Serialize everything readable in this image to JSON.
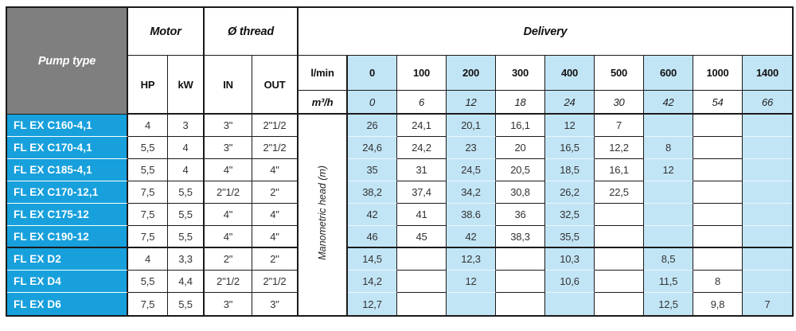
{
  "header": {
    "pump_type": "Pump type",
    "motor": "Motor",
    "thread": "Ø thread",
    "delivery": "Delivery",
    "hp": "HP",
    "kw": "kW",
    "in": "IN",
    "out": "OUT",
    "lmin_label": "l/min",
    "m3h_label": "m³/h",
    "manometric_label": "Manometric head (m)",
    "lmin_values": [
      "0",
      "100",
      "200",
      "300",
      "400",
      "500",
      "600",
      "1000",
      "1400"
    ],
    "m3h_values": [
      "0",
      "6",
      "12",
      "18",
      "24",
      "30",
      "42",
      "54",
      "66"
    ]
  },
  "rows": [
    {
      "name": "FL EX C160-4,1",
      "hp": "4",
      "kw": "3",
      "in": "3\"",
      "out": "2\"1/2",
      "delivery": [
        "26",
        "24,1",
        "20,1",
        "16,1",
        "12",
        "7",
        "",
        "",
        ""
      ],
      "group_end": false
    },
    {
      "name": "FL EX C170-4,1",
      "hp": "5,5",
      "kw": "4",
      "in": "3\"",
      "out": "2\"1/2",
      "delivery": [
        "24,6",
        "24,2",
        "23",
        "20",
        "16,5",
        "12,2",
        "8",
        "",
        ""
      ],
      "group_end": false
    },
    {
      "name": "FL EX C185-4,1",
      "hp": "5,5",
      "kw": "4",
      "in": "4\"",
      "out": "4\"",
      "delivery": [
        "35",
        "31",
        "24,5",
        "20,5",
        "18,5",
        "16,1",
        "12",
        "",
        ""
      ],
      "group_end": false
    },
    {
      "name": "FL EX C170-12,1",
      "hp": "7,5",
      "kw": "5,5",
      "in": "2\"1/2",
      "out": "2\"",
      "delivery": [
        "38,2",
        "37,4",
        "34,2",
        "30,8",
        "26,2",
        "22,5",
        "",
        "",
        ""
      ],
      "group_end": false
    },
    {
      "name": "FL EX C175-12",
      "hp": "7,5",
      "kw": "5,5",
      "in": "4\"",
      "out": "4\"",
      "delivery": [
        "42",
        "41",
        "38.6",
        "36",
        "32,5",
        "",
        "",
        "",
        ""
      ],
      "group_end": false
    },
    {
      "name": "FL EX C190-12",
      "hp": "7,5",
      "kw": "5,5",
      "in": "4\"",
      "out": "4\"",
      "delivery": [
        "46",
        "45",
        "42",
        "38,3",
        "35,5",
        "",
        "",
        "",
        ""
      ],
      "group_end": true
    },
    {
      "name": "FL EX D2",
      "hp": "4",
      "kw": "3,3",
      "in": "2\"",
      "out": "2\"",
      "delivery": [
        "14,5",
        "",
        "12,3",
        "",
        "10,3",
        "",
        "8,5",
        "",
        ""
      ],
      "group_end": false
    },
    {
      "name": "FL EX D4",
      "hp": "5,5",
      "kw": "4,4",
      "in": "2\"1/2",
      "out": "2\"1/2",
      "delivery": [
        "14,2",
        "",
        "12",
        "",
        "10,6",
        "",
        "11,5",
        "8",
        ""
      ],
      "group_end": false
    },
    {
      "name": "FL EX D6",
      "hp": "7,5",
      "kw": "5,5",
      "in": "3\"",
      "out": "3\"",
      "delivery": [
        "12,7",
        "",
        "",
        "",
        "",
        "",
        "12,5",
        "9,8",
        "7"
      ],
      "group_end": false
    }
  ],
  "colors": {
    "pump_cell_blue": "#17A0DC",
    "light_blue": "#C2E5F6",
    "header_gray": "#7F7F7F",
    "border_black": "#1A1A1A",
    "text_dark": "#333333"
  }
}
